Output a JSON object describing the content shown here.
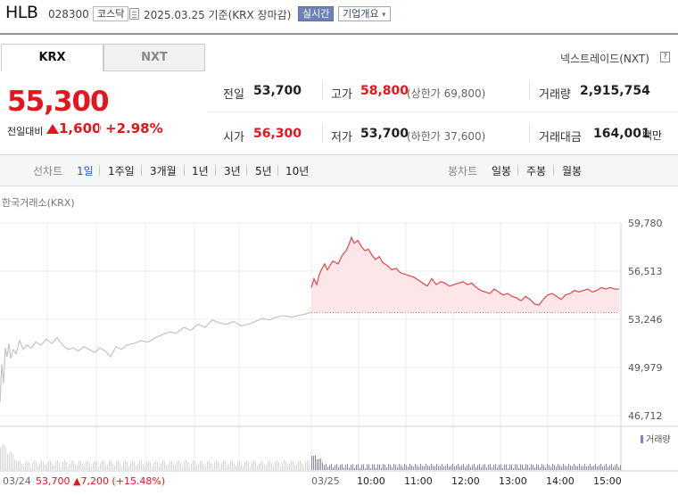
{
  "header": {
    "name": "HLB",
    "code": "028300",
    "market_tag": "코스닥",
    "date_text": "2025.03.25  기준(KRX 장마감)",
    "realtime_label": "실시간",
    "company_label": "기업개요",
    "company_caret": "▾"
  },
  "market_tabs": [
    {
      "label": "KRX",
      "active": true
    },
    {
      "label": "NXT",
      "active": false
    }
  ],
  "nxt_link": "넥스트레이드(NXT)",
  "help_icon_text": "?",
  "price": {
    "current": "55,300",
    "change_label": "전일대비",
    "change_value": "1,600",
    "change_pct": "+2.98%"
  },
  "quote": {
    "prev_close_label": "전일",
    "prev_close": "53,700",
    "high_label": "고가",
    "high": "58,800",
    "upper_limit": "(상한가 69,800)",
    "volume_label": "거래량",
    "volume": "2,915,754",
    "open_label": "시가",
    "open": "56,300",
    "low_label": "저가",
    "low": "53,700",
    "lower_limit": "(하한가 37,600)",
    "amount_label": "거래대금",
    "amount": "164,001",
    "amount_unit": "백만"
  },
  "period_bar": {
    "line_label": "선차트",
    "line_items": [
      "1일",
      "1주일",
      "3개월",
      "1년",
      "3년",
      "5년",
      "10년"
    ],
    "active": "1일",
    "candle_label": "봉차트",
    "candle_items": [
      "일봉",
      "주봉",
      "월봉"
    ]
  },
  "chart_source": "한국거래소(KRX)",
  "chart_data": {
    "type": "line",
    "y_ticks": [
      "59,780",
      "56,513",
      "53,246",
      "49,979",
      "46,712"
    ],
    "ylim": [
      46712,
      59780
    ],
    "prev_close_line": 53700,
    "x_labels": [
      "03/24",
      "03/25",
      "10:00",
      "11:00",
      "12:00",
      "13:00",
      "14:00",
      "15:00"
    ],
    "prev_day_summary": {
      "date": "03/24",
      "price": "53,700",
      "change": "7,200",
      "pct": "(+15.48%)"
    },
    "volume_label": "거래량",
    "colors": {
      "today_line": "#e0474c",
      "today_fill": "#fde6e7",
      "prev_line": "#c4c4c4",
      "volume": "#8a7fbf"
    },
    "series": [
      {
        "day": "03/24",
        "x": [
          0,
          2,
          4,
          6,
          8,
          10,
          12,
          15,
          18,
          22,
          26,
          30,
          35,
          40,
          46,
          52,
          58,
          64,
          70,
          76,
          82,
          88,
          94,
          100,
          106,
          112,
          118,
          124,
          130,
          136,
          142,
          150,
          158,
          166,
          174,
          182,
          190,
          198,
          206,
          214,
          222,
          230,
          238,
          246,
          254,
          262,
          270,
          278,
          286,
          294,
          302,
          310,
          318,
          326,
          334,
          342,
          348
        ],
        "y": [
          47600,
          50200,
          48900,
          51300,
          50700,
          51600,
          50600,
          51200,
          50900,
          51800,
          51200,
          51500,
          51300,
          51700,
          51500,
          51900,
          51600,
          52000,
          51500,
          51200,
          51300,
          51100,
          51400,
          51200,
          51000,
          51300,
          51100,
          50700,
          51400,
          51200,
          51500,
          51600,
          51800,
          51700,
          52000,
          52200,
          52400,
          52300,
          52700,
          52500,
          52900,
          52700,
          53200,
          53000,
          52900,
          53100,
          52800,
          52900,
          53100,
          53300,
          53200,
          53400,
          53500,
          53400,
          53500,
          53600,
          53700
        ]
      },
      {
        "day": "03/25",
        "x": [
          0,
          3,
          6,
          9,
          12,
          15,
          18,
          21,
          24,
          27,
          30,
          33,
          36,
          39,
          42,
          45,
          48,
          52,
          56,
          60,
          64,
          68,
          72,
          76,
          80,
          85,
          90,
          95,
          100,
          105,
          110,
          115,
          120,
          125,
          130,
          135,
          140,
          145,
          150,
          155,
          160,
          165,
          170,
          175,
          180,
          185,
          190,
          195,
          200,
          205,
          210,
          215,
          220,
          225,
          230,
          235,
          240,
          245,
          250,
          255,
          260,
          265,
          270,
          275,
          280,
          285,
          290,
          295,
          300,
          305,
          310,
          315,
          320,
          325,
          330,
          335,
          340,
          345
        ],
        "y": [
          55400,
          56000,
          55600,
          56300,
          56700,
          57000,
          56600,
          56900,
          57200,
          57100,
          57000,
          57400,
          57700,
          57900,
          58300,
          58800,
          58400,
          58600,
          58200,
          57900,
          58000,
          57600,
          57300,
          57500,
          57100,
          56900,
          56600,
          56700,
          56400,
          56300,
          56200,
          56100,
          55900,
          55700,
          55500,
          56000,
          55600,
          55800,
          55700,
          55500,
          55600,
          55700,
          55800,
          55600,
          55700,
          55400,
          55200,
          55100,
          55000,
          55300,
          55100,
          54900,
          55000,
          54800,
          54700,
          54500,
          54800,
          54600,
          54300,
          54200,
          54600,
          54900,
          55000,
          54800,
          54600,
          54900,
          55000,
          55200,
          55100,
          55200,
          55300,
          55100,
          55200,
          55400,
          55300,
          55400,
          55300,
          55300
        ]
      }
    ]
  }
}
